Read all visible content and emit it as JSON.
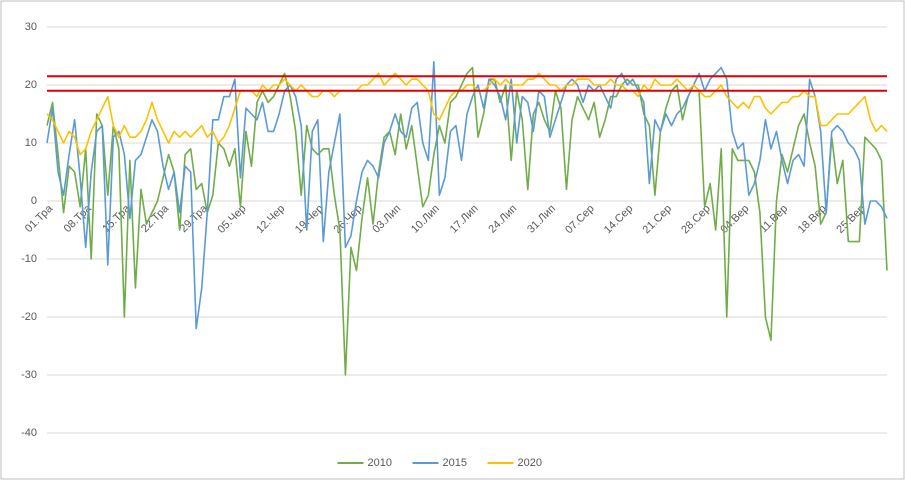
{
  "chart_data": {
    "type": "line",
    "categories": [
      "01.Тра",
      null,
      null,
      null,
      null,
      null,
      null,
      "08.Тра",
      null,
      null,
      null,
      null,
      null,
      null,
      "15.Тра",
      null,
      null,
      null,
      null,
      null,
      null,
      "22.Тра",
      null,
      null,
      null,
      null,
      null,
      null,
      "29.Тра",
      null,
      null,
      null,
      null,
      null,
      null,
      "05.Чер",
      null,
      null,
      null,
      null,
      null,
      null,
      "12.Чер",
      null,
      null,
      null,
      null,
      null,
      null,
      "19.Чер",
      null,
      null,
      null,
      null,
      null,
      null,
      "26.Чер",
      null,
      null,
      null,
      null,
      null,
      null,
      "03.Лип",
      null,
      null,
      null,
      null,
      null,
      null,
      "10.Лип",
      null,
      null,
      null,
      null,
      null,
      null,
      "17.Лип",
      null,
      null,
      null,
      null,
      null,
      null,
      "24.Лип",
      null,
      null,
      null,
      null,
      null,
      null,
      "31.Лип",
      null,
      null,
      null,
      null,
      null,
      null,
      "07.Сер",
      null,
      null,
      null,
      null,
      null,
      null,
      "14.Сер",
      null,
      null,
      null,
      null,
      null,
      null,
      "21.Сер",
      null,
      null,
      null,
      null,
      null,
      null,
      "28.Сер",
      null,
      null,
      null,
      null,
      null,
      null,
      "04.Вер",
      null,
      null,
      null,
      null,
      null,
      null,
      "11.Вер",
      null,
      null,
      null,
      null,
      null,
      null,
      "18.Вер",
      null,
      null,
      null,
      null,
      null,
      null,
      "25.Вер",
      null,
      null,
      null,
      null,
      null
    ],
    "series": [
      {
        "name": "2010",
        "color": "#70ad47",
        "values": [
          13,
          17,
          8,
          -2,
          6,
          5,
          -1,
          9,
          -10,
          15,
          13,
          1,
          13,
          9,
          -20,
          7,
          -15,
          2,
          -4,
          -2,
          0,
          4,
          8,
          5,
          -5,
          8,
          9,
          2,
          3,
          -2,
          1,
          10,
          9,
          6,
          9,
          -1,
          12,
          6,
          17,
          19,
          17,
          18,
          20,
          22,
          18,
          12,
          1,
          13,
          9,
          8,
          9,
          9,
          1,
          -5,
          -30,
          -8,
          -12,
          -3,
          4,
          -4,
          5,
          11,
          12,
          8,
          15,
          9,
          13,
          6,
          -1,
          1,
          8,
          13,
          10,
          17,
          18,
          20,
          22,
          23,
          11,
          15,
          21,
          21,
          17,
          20,
          7,
          19,
          14,
          2,
          15,
          17,
          14,
          12,
          19,
          16,
          2,
          14,
          18,
          16,
          14,
          17,
          11,
          14,
          18,
          18,
          20,
          21,
          20,
          20,
          15,
          13,
          1,
          12,
          16,
          19,
          20,
          14,
          18,
          20,
          19,
          -1,
          3,
          -5,
          9,
          -20,
          9,
          7,
          7,
          7,
          5,
          -2,
          -20,
          -24,
          0,
          8,
          5,
          9,
          13,
          15,
          10,
          6,
          -4,
          -2,
          11,
          3,
          7,
          -7,
          -7,
          -7,
          11,
          10,
          9,
          7,
          -12
        ]
      },
      {
        "name": "2015",
        "color": "#5b9bd5",
        "values": [
          10,
          16,
          5,
          1,
          8,
          14,
          4,
          -8,
          5,
          12,
          13,
          -11,
          11,
          12,
          8,
          -3,
          7,
          8,
          11,
          14,
          12,
          6,
          2,
          5,
          -2,
          6,
          5,
          -22,
          -15,
          -2,
          14,
          14,
          18,
          18,
          21,
          4,
          16,
          15,
          14,
          17,
          12,
          12,
          15,
          19,
          20,
          18,
          13,
          -5,
          12,
          14,
          -7,
          5,
          10,
          15,
          -8,
          -6,
          0,
          5,
          7,
          6,
          4,
          10,
          12,
          15,
          12,
          11,
          16,
          17,
          10,
          7,
          24,
          1,
          4,
          12,
          13,
          7,
          15,
          18,
          20,
          16,
          21,
          20,
          18,
          14,
          21,
          10,
          18,
          17,
          12,
          19,
          18,
          11,
          14,
          17,
          20,
          21,
          20,
          17,
          20,
          19,
          20,
          18,
          16,
          21,
          22,
          20,
          21,
          19,
          17,
          3,
          14,
          12,
          15,
          13,
          15,
          16,
          18,
          20,
          22,
          19,
          21,
          22,
          23,
          21,
          12,
          9,
          10,
          1,
          3,
          7,
          14,
          9,
          12,
          7,
          3,
          7,
          8,
          6,
          21,
          18,
          12,
          -2,
          12,
          13,
          12,
          10,
          9,
          7,
          -4,
          0,
          0,
          -1,
          -3
        ]
      },
      {
        "name": "2020",
        "color": "#ffc000",
        "values": [
          15,
          14,
          12,
          10,
          12,
          11,
          8,
          9,
          12,
          14,
          16,
          18,
          13,
          11,
          13,
          11,
          11,
          12,
          14,
          17,
          14,
          12,
          10,
          12,
          11,
          12,
          11,
          12,
          13,
          11,
          12,
          10,
          11,
          13,
          16,
          19,
          19,
          19,
          18,
          20,
          19,
          20,
          20,
          21,
          20,
          19,
          20,
          19,
          18,
          18,
          19,
          19,
          18,
          19,
          19,
          19,
          19,
          20,
          20,
          21,
          22,
          20,
          21,
          22,
          21,
          20,
          21,
          21,
          20,
          19,
          15,
          14,
          16,
          18,
          19,
          19,
          20,
          20,
          19,
          19,
          20,
          21,
          20,
          21,
          20,
          20,
          20,
          21,
          21,
          22,
          21,
          20,
          20,
          19,
          20,
          20,
          21,
          21,
          21,
          20,
          20,
          20,
          21,
          20,
          20,
          19,
          19,
          18,
          20,
          19,
          21,
          20,
          20,
          20,
          21,
          20,
          19,
          20,
          19,
          18,
          18,
          19,
          20,
          18,
          17,
          16,
          17,
          16,
          18,
          18,
          16,
          15,
          16,
          17,
          17,
          18,
          18,
          19,
          18,
          18,
          13,
          13,
          14,
          15,
          15,
          15,
          16,
          17,
          18,
          14,
          12,
          13,
          12
        ]
      }
    ],
    "reference_lines": [
      {
        "value": 21.5,
        "color": "#e00000"
      },
      {
        "value": 19,
        "color": "#e00000"
      }
    ],
    "ylim": [
      -40,
      30
    ],
    "yticks": [
      -40,
      -30,
      -20,
      -10,
      0,
      10,
      20,
      30
    ],
    "grid": true,
    "legend": "bottom"
  }
}
